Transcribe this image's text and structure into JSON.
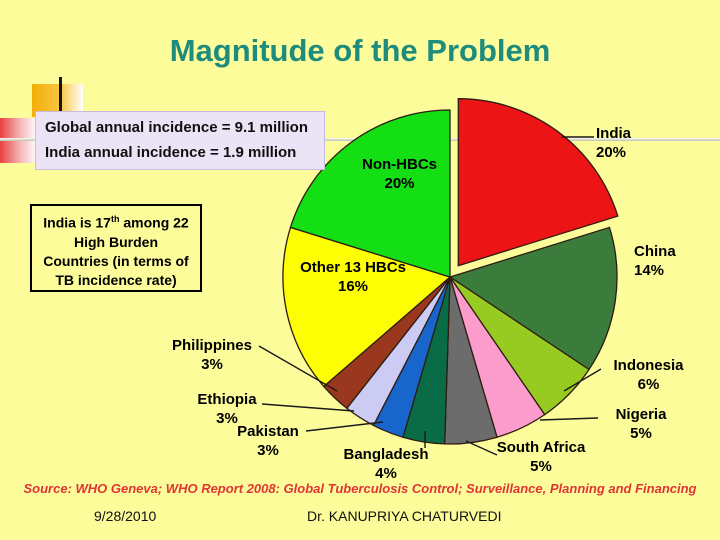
{
  "slide": {
    "title": "Magnitude of the Problem",
    "source_line": "Source: WHO Geneva; WHO Report 2008: Global Tuberculosis Control; Surveillance, Planning and Financing",
    "footer": {
      "date": "9/28/2010",
      "author": "Dr. KANUPRIYA CHATURVEDI"
    },
    "colors": {
      "background": "#FCFC9B",
      "title": "#1E8C7C",
      "source_text": "#E13434"
    }
  },
  "info_box": {
    "line1": "Global annual incidence = 9.1 million",
    "line2": "India annual incidence = 1.9 million"
  },
  "rank_box": {
    "line1_prefix": "India is 17",
    "line1_sup": "th",
    "line1_suffix": " among 22",
    "line2": "High Burden",
    "line3": "Countries (in terms of",
    "line4": "TB incidence rate)"
  },
  "chart_data": {
    "type": "pie",
    "title": "Share of global TB incidence by country",
    "unit": "%",
    "start_angle": "12 o'clock, clockwise",
    "slices": [
      {
        "label": "India",
        "pct": 20,
        "color": "#EC1414",
        "exploded": true
      },
      {
        "label": "China",
        "pct": 14,
        "color": "#3B7C3D",
        "exploded": false
      },
      {
        "label": "Indonesia",
        "pct": 6,
        "color": "#97CB22",
        "exploded": false
      },
      {
        "label": "Nigeria",
        "pct": 5,
        "color": "#FC9CCC",
        "exploded": false
      },
      {
        "label": "South Africa",
        "pct": 5,
        "color": "#6C6C6C",
        "exploded": false
      },
      {
        "label": "Bangladesh",
        "pct": 4,
        "color": "#0A6B47",
        "exploded": false
      },
      {
        "label": "Pakistan",
        "pct": 3,
        "color": "#1866CB",
        "exploded": false
      },
      {
        "label": "Ethiopia",
        "pct": 3,
        "color": "#CBCBF4",
        "exploded": false
      },
      {
        "label": "Philippines",
        "pct": 3,
        "color": "#99381E",
        "exploded": false
      },
      {
        "label": "Other 13 HBCs",
        "pct": 16,
        "color": "#FDFD04",
        "exploded": false
      },
      {
        "label": "Non-HBCs",
        "pct": 20,
        "color": "#14DE14",
        "exploded": false
      }
    ]
  }
}
